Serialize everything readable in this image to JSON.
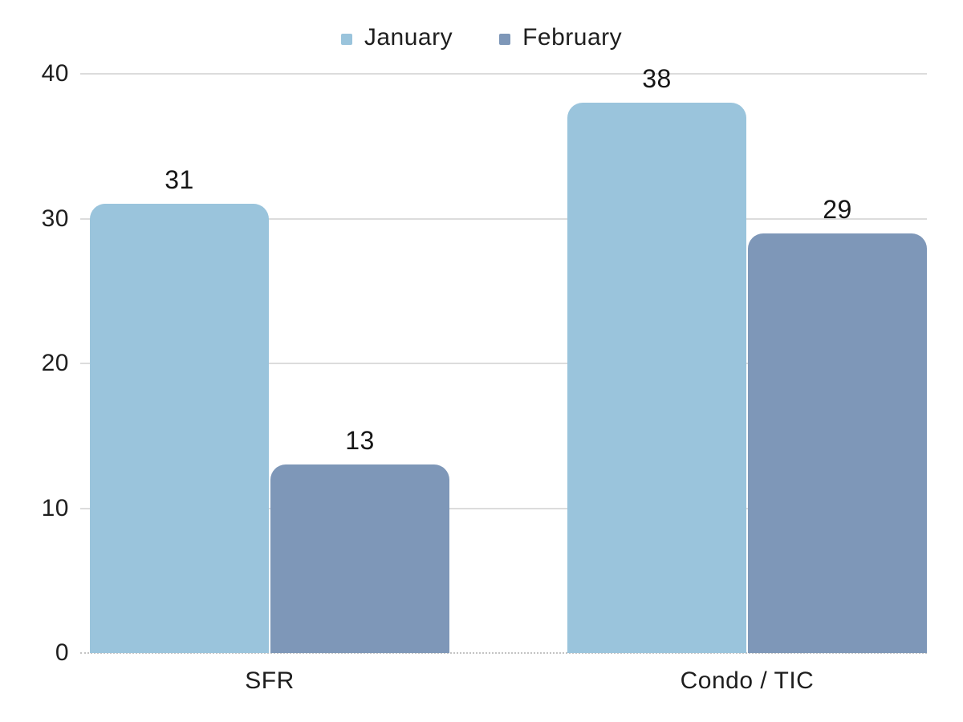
{
  "legend": {
    "items": [
      {
        "label": "January",
        "color": "#9ac4dc"
      },
      {
        "label": "February",
        "color": "#7e97b8"
      }
    ]
  },
  "chart_data": {
    "type": "bar",
    "categories": [
      "SFR",
      "Condo / TIC"
    ],
    "series": [
      {
        "name": "January",
        "color": "#9ac4dc",
        "values": [
          31,
          38
        ]
      },
      {
        "name": "February",
        "color": "#7e97b8",
        "values": [
          13,
          29
        ]
      }
    ],
    "title": "",
    "xlabel": "",
    "ylabel": "",
    "ylim": [
      0,
      40
    ],
    "yticks": [
      0,
      10,
      20,
      30,
      40
    ],
    "grid": true,
    "grid_color": "#dcdcdc",
    "baseline_style": "dotted",
    "legend_position": "top",
    "data_labels_shown": true,
    "text_color": "#1e1e1e"
  }
}
